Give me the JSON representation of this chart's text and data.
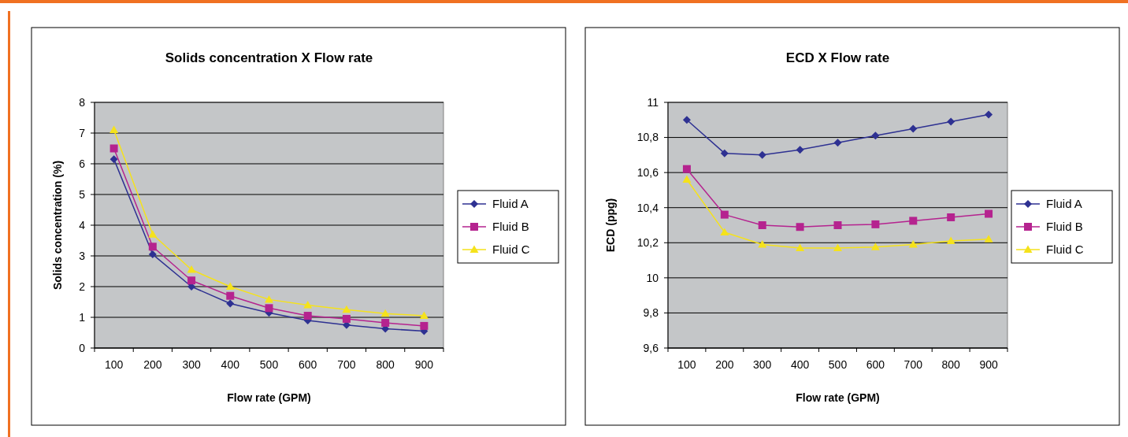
{
  "chart_data": [
    {
      "type": "line",
      "title": "Solids concentration X Flow rate",
      "xlabel": "Flow rate (GPM)",
      "ylabel": "Solids concentration (%)",
      "categories": [
        "100",
        "200",
        "300",
        "400",
        "500",
        "600",
        "700",
        "800",
        "900"
      ],
      "ylim": [
        0,
        8
      ],
      "yticks": [
        0,
        1,
        2,
        3,
        4,
        5,
        6,
        7,
        8
      ],
      "grid": "y",
      "legend": "right",
      "series": [
        {
          "name": "Fluid A",
          "color": "#2e3192",
          "marker": "diamond",
          "values": [
            6.15,
            3.05,
            2.0,
            1.45,
            1.15,
            0.9,
            0.75,
            0.63,
            0.55
          ]
        },
        {
          "name": "Fluid B",
          "color": "#b5238f",
          "marker": "square",
          "values": [
            6.5,
            3.3,
            2.2,
            1.7,
            1.3,
            1.05,
            0.95,
            0.82,
            0.72
          ]
        },
        {
          "name": "Fluid C",
          "color": "#f5e21b",
          "marker": "triangle",
          "values": [
            7.1,
            3.7,
            2.55,
            2.0,
            1.58,
            1.4,
            1.25,
            1.12,
            1.05
          ]
        }
      ]
    },
    {
      "type": "line",
      "title": "ECD X Flow rate",
      "xlabel": "Flow rate (GPM)",
      "ylabel": "ECD (ppg)",
      "categories": [
        "100",
        "200",
        "300",
        "400",
        "500",
        "600",
        "700",
        "800",
        "900"
      ],
      "ylim": [
        9.6,
        11
      ],
      "yticks": [
        {
          "value": 9.6,
          "label": "9,6"
        },
        {
          "value": 9.8,
          "label": "9,8"
        },
        10,
        {
          "value": 10.2,
          "label": "10,2"
        },
        {
          "value": 10.4,
          "label": "10,4"
        },
        {
          "value": 10.6,
          "label": "10,6"
        },
        {
          "value": 10.8,
          "label": "10,8"
        },
        11
      ],
      "grid": "y",
      "legend": "right",
      "series": [
        {
          "name": "Fluid A",
          "color": "#2e3192",
          "marker": "diamond",
          "values": [
            10.9,
            10.71,
            10.7,
            10.73,
            10.77,
            10.81,
            10.85,
            10.89,
            10.93
          ]
        },
        {
          "name": "Fluid B",
          "color": "#b5238f",
          "marker": "square",
          "values": [
            10.62,
            10.36,
            10.3,
            10.29,
            10.3,
            10.305,
            10.325,
            10.345,
            10.365
          ]
        },
        {
          "name": "Fluid C",
          "color": "#f5e21b",
          "marker": "triangle",
          "values": [
            10.56,
            10.26,
            10.19,
            10.17,
            10.17,
            10.175,
            10.19,
            10.21,
            10.22
          ]
        }
      ]
    }
  ]
}
